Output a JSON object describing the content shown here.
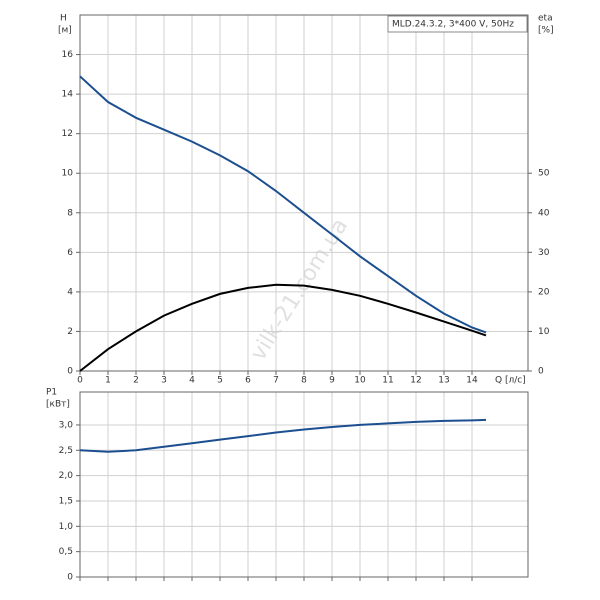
{
  "chart_data": [
    {
      "type": "line",
      "y_label": "H",
      "y_unit": "[м]",
      "y2_label": "eta",
      "y2_unit": "[%]",
      "x_label": "Q [л/с]",
      "annotation": "MLD.24.3.2, 3*400 V, 50Hz",
      "watermark": "vilk-21.com.ua",
      "x": [
        0,
        1,
        2,
        3,
        4,
        5,
        6,
        7,
        8,
        9,
        10,
        11,
        12,
        13,
        14,
        14.5
      ],
      "series": [
        {
          "color": "#1c4f8f",
          "values": [
            14.9,
            13.6,
            12.8,
            12.2,
            11.6,
            10.9,
            10.1,
            9.1,
            8.0,
            6.9,
            5.8,
            4.8,
            3.8,
            2.9,
            2.2,
            1.95
          ]
        },
        {
          "color": "#000000",
          "axis": "y2",
          "values": [
            0,
            5.5,
            10,
            14,
            17,
            19.5,
            21,
            21.8,
            21.6,
            20.5,
            19,
            17,
            14.8,
            12.5,
            10.2,
            9
          ]
        }
      ],
      "xlim": [
        0,
        16
      ],
      "xticks": [
        0,
        1,
        2,
        3,
        4,
        5,
        6,
        7,
        8,
        9,
        10,
        11,
        12,
        13,
        14
      ],
      "ylim": [
        0,
        18
      ],
      "yticks": [
        0,
        2,
        4,
        6,
        8,
        10,
        12,
        14,
        16
      ],
      "y2lim": [
        0,
        90
      ],
      "y2ticks": [
        0,
        10,
        20,
        30,
        40,
        50
      ],
      "grid": true
    },
    {
      "type": "line",
      "y_label": "P1",
      "y_unit": "[кВт]",
      "x": [
        0,
        1,
        2,
        3,
        4,
        5,
        6,
        7,
        8,
        9,
        10,
        11,
        12,
        13,
        14,
        14.5
      ],
      "series": [
        {
          "color": "#1c4f8f",
          "values": [
            2.5,
            2.47,
            2.5,
            2.57,
            2.64,
            2.71,
            2.78,
            2.85,
            2.91,
            2.96,
            3.0,
            3.03,
            3.06,
            3.08,
            3.09,
            3.1
          ]
        }
      ],
      "xlim": [
        0,
        16
      ],
      "ylim": [
        0,
        3.65
      ],
      "yticks": [
        0,
        {
          "value": 0.5,
          "label": "0,5"
        },
        {
          "value": 1,
          "label": "1,0"
        },
        {
          "value": 1.5,
          "label": "1,5"
        },
        {
          "value": 2,
          "label": "2,0"
        },
        {
          "value": 2.5,
          "label": "2,5"
        },
        {
          "value": 3,
          "label": "3,0"
        }
      ],
      "grid": true
    }
  ]
}
